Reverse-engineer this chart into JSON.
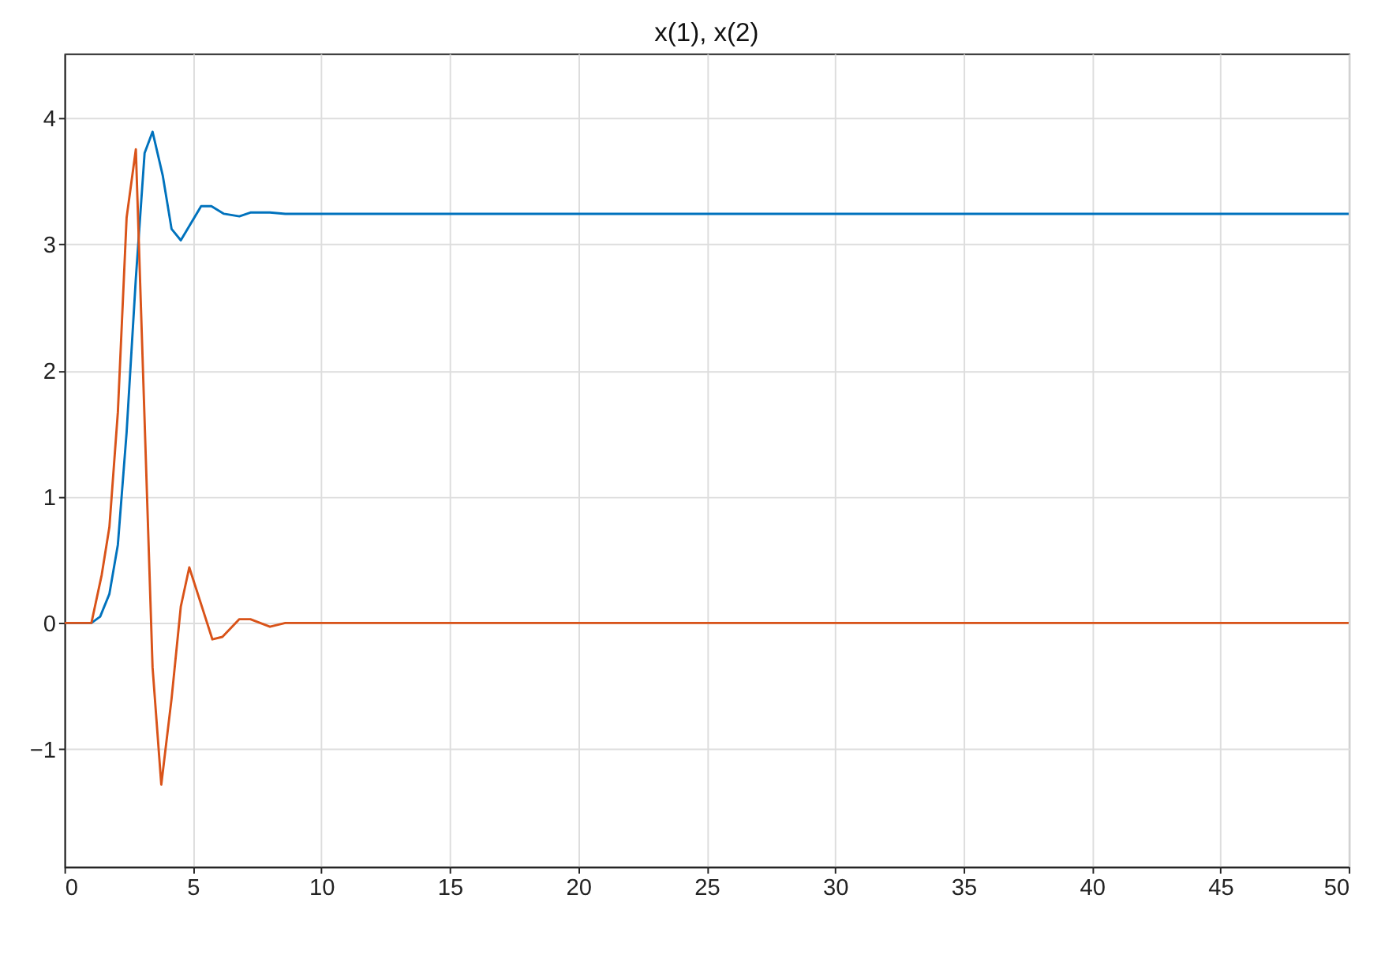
{
  "chart_data": {
    "type": "line",
    "title": "x(1), x(2)",
    "xlim": [
      0,
      50
    ],
    "xticks": [
      0,
      5,
      10,
      15,
      20,
      25,
      30,
      35,
      40,
      45,
      50
    ],
    "ylim": [
      -1.93,
      4.51
    ],
    "yticks": [
      -1,
      0,
      1,
      2,
      3,
      4
    ],
    "grid": true,
    "legend": false,
    "line_style": "solid",
    "marker": "none",
    "series": [
      {
        "color": "#0072bd",
        "x": [
          0,
          1.05,
          1.39,
          1.75,
          2.08,
          2.42,
          2.78,
          3.12,
          3.43,
          3.83,
          4.17,
          4.53,
          5.32,
          5.72,
          6.21,
          6.81,
          7.24,
          8.0,
          8.6,
          50
        ],
        "values": [
          0,
          0,
          0.05,
          0.23,
          0.62,
          1.51,
          2.73,
          3.72,
          3.89,
          3.54,
          3.12,
          3.03,
          3.3,
          3.3,
          3.24,
          3.22,
          3.25,
          3.25,
          3.24,
          3.24
        ]
      },
      {
        "color": "#d95319",
        "x": [
          0,
          1.05,
          1.45,
          1.75,
          2.08,
          2.42,
          2.78,
          3.43,
          3.77,
          4.17,
          4.53,
          4.86,
          5.76,
          6.15,
          6.81,
          7.24,
          8.0,
          8.6,
          50
        ],
        "values": [
          0,
          0,
          0.38,
          0.76,
          1.67,
          3.21,
          3.75,
          -0.35,
          -1.28,
          -0.6,
          0.13,
          0.44,
          -0.13,
          -0.11,
          0.03,
          0.03,
          -0.03,
          0,
          0
        ]
      }
    ]
  }
}
